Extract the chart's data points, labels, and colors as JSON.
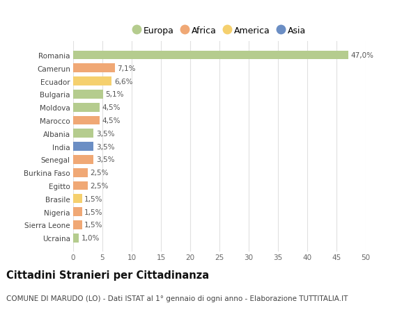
{
  "countries": [
    "Romania",
    "Camerun",
    "Ecuador",
    "Bulgaria",
    "Moldova",
    "Marocco",
    "Albania",
    "India",
    "Senegal",
    "Burkina Faso",
    "Egitto",
    "Brasile",
    "Nigeria",
    "Sierra Leone",
    "Ucraina"
  ],
  "values": [
    47.0,
    7.1,
    6.6,
    5.1,
    4.5,
    4.5,
    3.5,
    3.5,
    3.5,
    2.5,
    2.5,
    1.5,
    1.5,
    1.5,
    1.0
  ],
  "labels": [
    "47,0%",
    "7,1%",
    "6,6%",
    "5,1%",
    "4,5%",
    "4,5%",
    "3,5%",
    "3,5%",
    "3,5%",
    "2,5%",
    "2,5%",
    "1,5%",
    "1,5%",
    "1,5%",
    "1,0%"
  ],
  "continents": [
    "Europa",
    "Africa",
    "America",
    "Europa",
    "Europa",
    "Africa",
    "Europa",
    "Asia",
    "Africa",
    "Africa",
    "Africa",
    "America",
    "Africa",
    "Africa",
    "Europa"
  ],
  "continent_colors": {
    "Europa": "#b5cc8e",
    "Africa": "#f0a875",
    "America": "#f5d06e",
    "Asia": "#6b8ec4"
  },
  "legend_entries": [
    "Europa",
    "Africa",
    "America",
    "Asia"
  ],
  "legend_colors": [
    "#b5cc8e",
    "#f0a875",
    "#f5d06e",
    "#6b8ec4"
  ],
  "xlim": [
    0,
    50
  ],
  "xticks": [
    0,
    5,
    10,
    15,
    20,
    25,
    30,
    35,
    40,
    45,
    50
  ],
  "title": "Cittadini Stranieri per Cittadinanza",
  "subtitle": "COMUNE DI MARUDO (LO) - Dati ISTAT al 1° gennaio di ogni anno - Elaborazione TUTTITALIA.IT",
  "bg_color": "#ffffff",
  "grid_color": "#e0e0e0",
  "bar_height": 0.68,
  "label_fontsize": 7.5,
  "tick_fontsize": 7.5,
  "title_fontsize": 10.5,
  "subtitle_fontsize": 7.5,
  "legend_fontsize": 9.0
}
